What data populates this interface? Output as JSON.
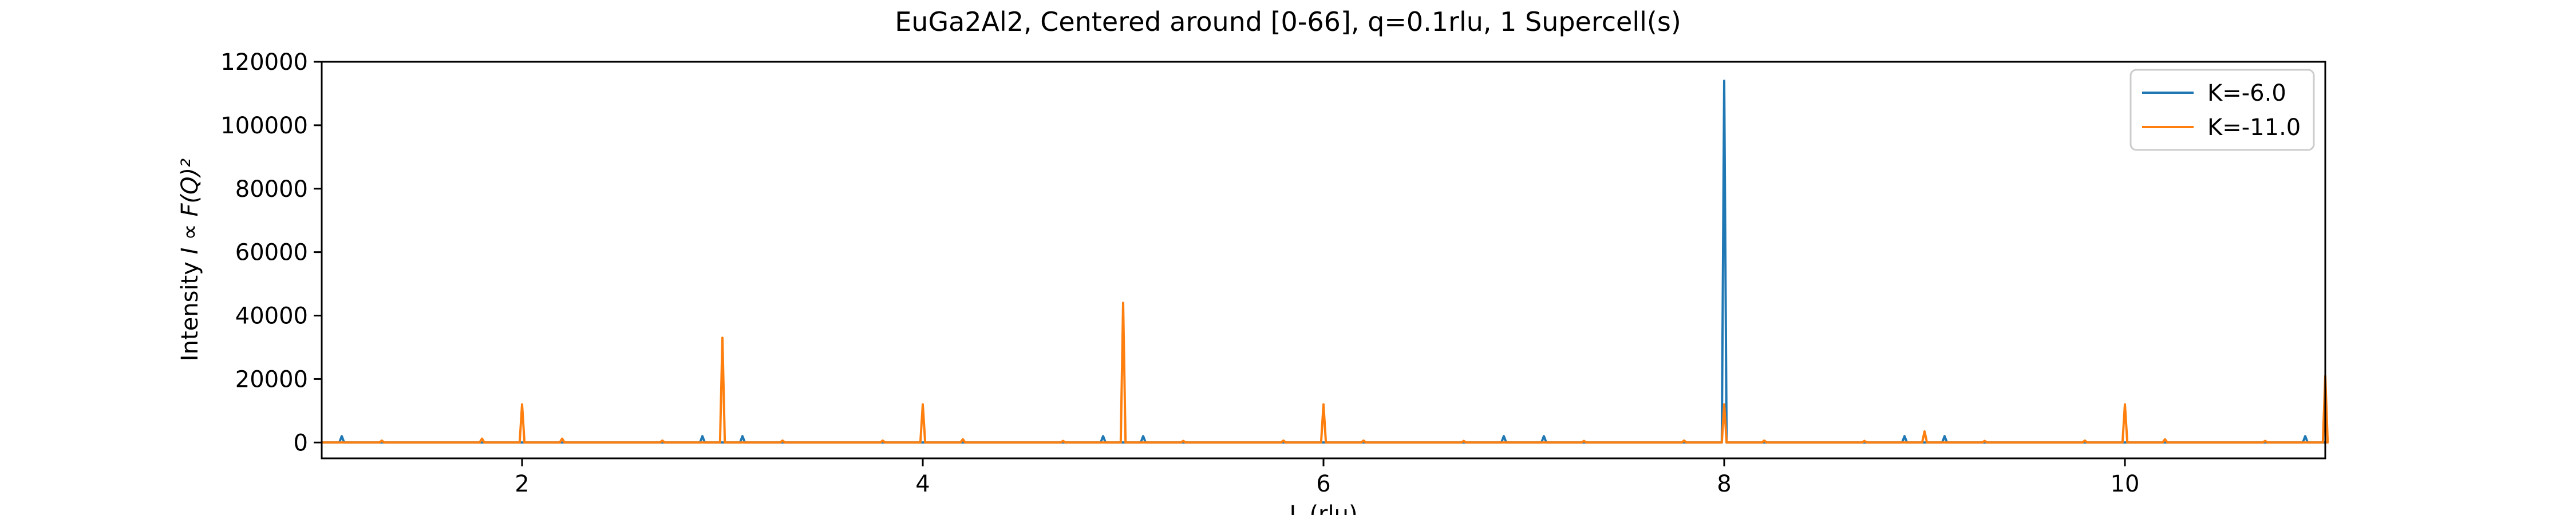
{
  "chart_data": {
    "type": "line",
    "title": "EuGa2Al2, Centered around [0-66], q=0.1rlu, 1 Supercell(s)",
    "xlabel": "L (rlu)",
    "ylabel_prefix": "Intensity ",
    "ylabel_symbol": "I ∝ F(Q)²",
    "xlim": [
      1,
      11
    ],
    "ylim": [
      -5000,
      120000
    ],
    "xticks": [
      2,
      4,
      6,
      8,
      10
    ],
    "yticks": [
      0,
      20000,
      40000,
      60000,
      80000,
      100000,
      120000
    ],
    "ytick_labels": [
      "0",
      "20000",
      "40000",
      "60000",
      "80000",
      "100000",
      "120000"
    ],
    "grid": false,
    "legend_position": "top-right",
    "series": [
      {
        "name": "K=-6.0",
        "color": "#1f77b4",
        "peaks": [
          [
            1.1,
            2000
          ],
          [
            2.9,
            2000
          ],
          [
            3.1,
            2000
          ],
          [
            4.9,
            2000
          ],
          [
            5.1,
            2000
          ],
          [
            6.9,
            2000
          ],
          [
            7.1,
            2000
          ],
          [
            8.0,
            114000
          ],
          [
            8.9,
            2000
          ],
          [
            9.1,
            2000
          ],
          [
            10.9,
            2000
          ]
        ]
      },
      {
        "name": "K=-11.0",
        "color": "#ff7f0e",
        "peaks": [
          [
            1.3,
            600
          ],
          [
            1.8,
            1200
          ],
          [
            2.0,
            12000
          ],
          [
            2.2,
            1200
          ],
          [
            2.7,
            600
          ],
          [
            3.0,
            33000
          ],
          [
            3.3,
            600
          ],
          [
            3.8,
            600
          ],
          [
            4.0,
            12000
          ],
          [
            4.2,
            1000
          ],
          [
            4.7,
            500
          ],
          [
            5.0,
            44000
          ],
          [
            5.3,
            500
          ],
          [
            5.8,
            600
          ],
          [
            6.0,
            12000
          ],
          [
            6.2,
            600
          ],
          [
            6.7,
            500
          ],
          [
            7.3,
            500
          ],
          [
            7.8,
            600
          ],
          [
            8.0,
            12000
          ],
          [
            8.2,
            600
          ],
          [
            8.7,
            500
          ],
          [
            9.0,
            3500
          ],
          [
            9.3,
            500
          ],
          [
            9.8,
            600
          ],
          [
            10.0,
            12000
          ],
          [
            10.2,
            1000
          ],
          [
            10.7,
            500
          ],
          [
            11.0,
            21000
          ]
        ]
      }
    ]
  }
}
